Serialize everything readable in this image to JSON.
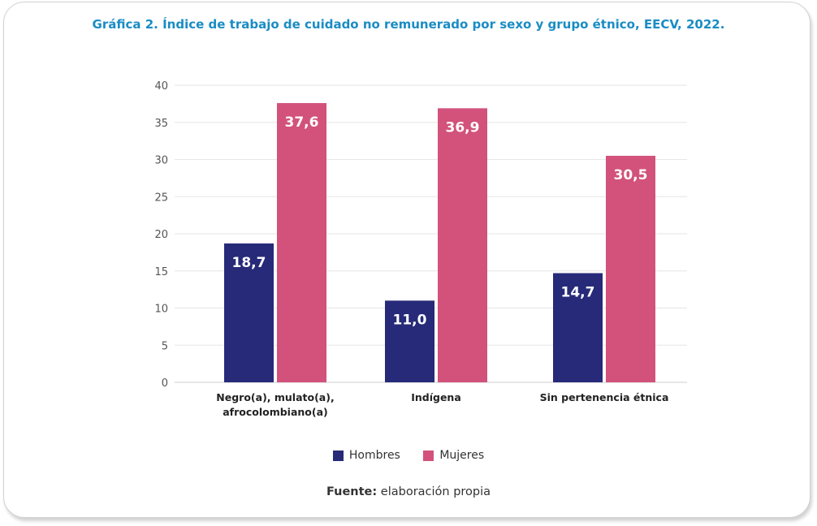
{
  "header": {
    "title": "Gráfica 2. Índice de trabajo de cuidado no remunerado por sexo y grupo étnico, EECV, 2022."
  },
  "chart_data": {
    "type": "bar",
    "title": "Gráfica 2. Índice de trabajo de cuidado no remunerado por sexo y grupo étnico, EECV, 2022.",
    "categories": [
      [
        "Negro(a), mulato(a),",
        "afrocolombiano(a)"
      ],
      [
        "Indígena"
      ],
      [
        "Sin pertenencia étnica"
      ]
    ],
    "series": [
      {
        "name": "Hombres",
        "values": [
          18.7,
          11.0,
          14.7
        ],
        "labels": [
          "18,7",
          "11,0",
          "14,7"
        ],
        "color": "#262a78"
      },
      {
        "name": "Mujeres",
        "values": [
          37.6,
          36.9,
          30.5
        ],
        "labels": [
          "37,6",
          "36,9",
          "30,5"
        ],
        "color": "#d2527c"
      }
    ],
    "yticks": [
      0,
      5,
      10,
      15,
      20,
      25,
      30,
      35,
      40
    ],
    "ylim": [
      0,
      40
    ],
    "grid": true,
    "legend": "bottom",
    "xlabel": "",
    "ylabel": ""
  },
  "legend": {
    "items": [
      {
        "label": "Hombres",
        "color": "#262a78"
      },
      {
        "label": "Mujeres",
        "color": "#d2527c"
      }
    ]
  },
  "source": {
    "prefix": "Fuente:",
    "text": " elaboración propia"
  }
}
